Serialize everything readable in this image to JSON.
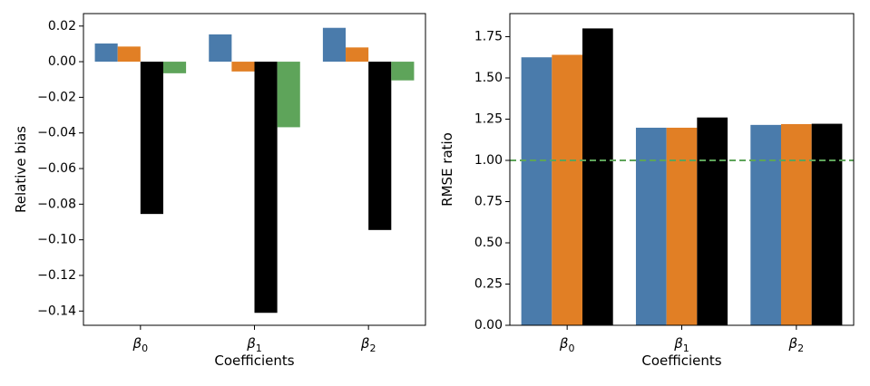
{
  "colors": {
    "series": [
      "#4a7bab",
      "#e17f25",
      "#000000",
      "#5ea45a"
    ],
    "reference_line": "#5ea45a",
    "axes": "#000000"
  },
  "chart_data": [
    {
      "type": "bar",
      "categories": [
        "β0",
        "β1",
        "β2"
      ],
      "category_base": [
        "β",
        "β",
        "β"
      ],
      "category_sub": [
        "0",
        "1",
        "2"
      ],
      "series": [
        {
          "name": "series-1",
          "values": [
            0.0102,
            0.0153,
            0.019
          ]
        },
        {
          "name": "series-2",
          "values": [
            0.0085,
            -0.0055,
            0.008
          ]
        },
        {
          "name": "series-3",
          "values": [
            -0.0855,
            -0.141,
            -0.0945
          ]
        },
        {
          "name": "series-4",
          "values": [
            -0.0065,
            -0.0368,
            -0.0105
          ]
        }
      ],
      "xlabel": "Coefficients",
      "ylabel": "Relative bias",
      "ylim": [
        -0.148,
        0.027
      ],
      "yticks": [
        0.02,
        0.0,
        -0.02,
        -0.04,
        -0.06,
        -0.08,
        -0.1,
        -0.12,
        -0.14
      ],
      "ytick_labels": [
        "0.02",
        "0.00",
        "−0.02",
        "−0.04",
        "−0.06",
        "−0.08",
        "−0.10",
        "−0.12",
        "−0.14"
      ],
      "grid": false
    },
    {
      "type": "bar",
      "categories": [
        "β0",
        "β1",
        "β2"
      ],
      "category_base": [
        "β",
        "β",
        "β"
      ],
      "category_sub": [
        "0",
        "1",
        "2"
      ],
      "series": [
        {
          "name": "series-1",
          "values": [
            1.625,
            1.198,
            1.215
          ]
        },
        {
          "name": "series-2",
          "values": [
            1.64,
            1.198,
            1.22
          ]
        },
        {
          "name": "series-3",
          "values": [
            1.8,
            1.26,
            1.222
          ]
        }
      ],
      "reference_line": {
        "y": 1.0,
        "style": "dashed"
      },
      "xlabel": "Coefficients",
      "ylabel": "RMSE ratio",
      "ylim": [
        0.0,
        1.89
      ],
      "yticks": [
        0.0,
        0.25,
        0.5,
        0.75,
        1.0,
        1.25,
        1.5,
        1.75
      ],
      "ytick_labels": [
        "0.00",
        "0.25",
        "0.50",
        "0.75",
        "1.00",
        "1.25",
        "1.50",
        "1.75"
      ],
      "grid": false
    }
  ]
}
